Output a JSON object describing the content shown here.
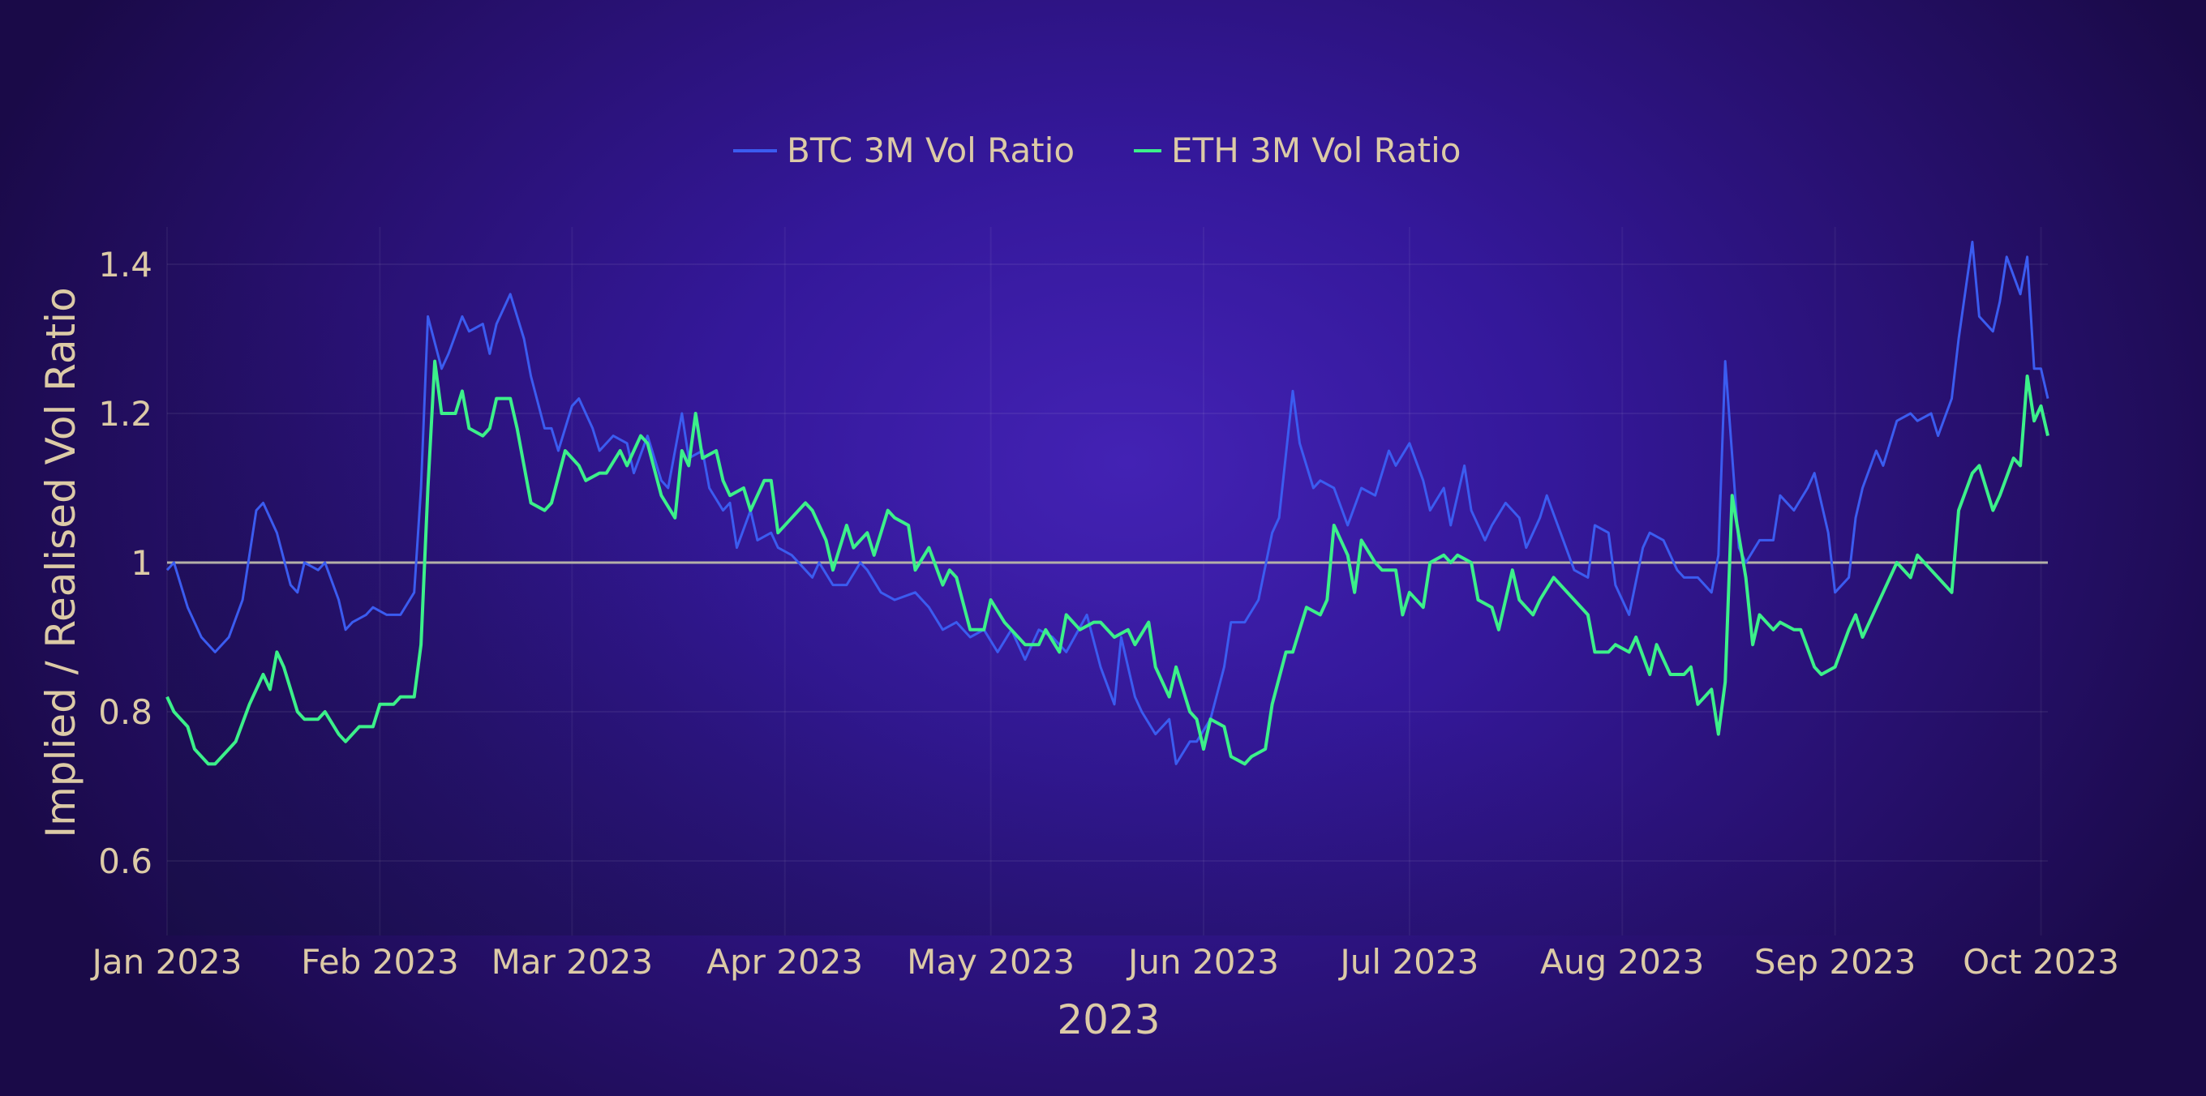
{
  "chart_data": {
    "type": "line",
    "title": "",
    "xlabel": "2023",
    "ylabel": "Implied / Realised Vol Ratio",
    "x_unit": "days since 2023-01-01",
    "xlim": [
      0,
      274
    ],
    "ylim": [
      0.5,
      1.45
    ],
    "x_ticks": [
      {
        "day": 0,
        "label": "Jan 2023"
      },
      {
        "day": 31,
        "label": "Feb 2023"
      },
      {
        "day": 59,
        "label": "Mar 2023"
      },
      {
        "day": 90,
        "label": "Apr 2023"
      },
      {
        "day": 120,
        "label": "May 2023"
      },
      {
        "day": 151,
        "label": "Jun 2023"
      },
      {
        "day": 181,
        "label": "Jul 2023"
      },
      {
        "day": 212,
        "label": "Aug 2023"
      },
      {
        "day": 243,
        "label": "Sep 2023"
      },
      {
        "day": 273,
        "label": "Oct 2023"
      }
    ],
    "y_ticks": [
      {
        "value": 0.6,
        "label": "0.6"
      },
      {
        "value": 0.8,
        "label": "0.8"
      },
      {
        "value": 1.0,
        "label": "1"
      },
      {
        "value": 1.2,
        "label": "1.2"
      },
      {
        "value": 1.4,
        "label": "1.4"
      }
    ],
    "reference_line": {
      "value": 1.0,
      "color": "#b4b0a8"
    },
    "grid": true,
    "legend_position": "top-center",
    "series": [
      {
        "name": "BTC 3M Vol Ratio",
        "color": "#3b5cf0",
        "x": [
          0,
          1,
          3,
          5,
          7,
          9,
          11,
          13,
          14,
          16,
          18,
          19,
          20,
          22,
          23,
          25,
          26,
          27,
          29,
          30,
          32,
          34,
          36,
          37,
          38,
          40,
          41,
          43,
          44,
          46,
          47,
          48,
          50,
          52,
          53,
          55,
          56,
          57,
          59,
          60,
          62,
          63,
          65,
          67,
          68,
          70,
          72,
          73,
          75,
          76,
          78,
          79,
          81,
          82,
          83,
          85,
          86,
          88,
          89,
          91,
          94,
          95,
          97,
          99,
          101,
          102,
          104,
          106,
          109,
          111,
          113,
          115,
          117,
          119,
          121,
          123,
          125,
          127,
          129,
          131,
          134,
          136,
          138,
          139,
          141,
          142,
          144,
          146,
          147,
          149,
          150,
          152,
          154,
          155,
          157,
          159,
          161,
          162,
          164,
          165,
          167,
          168,
          170,
          172,
          174,
          176,
          178,
          179,
          181,
          183,
          184,
          186,
          187,
          189,
          190,
          192,
          193,
          195,
          197,
          198,
          200,
          201,
          203,
          205,
          207,
          208,
          210,
          211,
          213,
          215,
          216,
          218,
          220,
          221,
          223,
          225,
          226,
          227,
          229,
          230,
          232,
          234,
          235,
          237,
          239,
          240,
          242,
          243,
          245,
          246,
          247,
          249,
          250,
          252,
          254,
          255,
          257,
          258,
          260,
          261,
          263,
          264,
          266,
          267,
          268,
          270,
          271,
          272,
          273,
          274
        ],
        "y": [
          0.99,
          1.0,
          0.94,
          0.9,
          0.88,
          0.9,
          0.95,
          1.07,
          1.08,
          1.04,
          0.97,
          0.96,
          1.0,
          0.99,
          1.0,
          0.95,
          0.91,
          0.92,
          0.93,
          0.94,
          0.93,
          0.93,
          0.96,
          1.1,
          1.33,
          1.26,
          1.28,
          1.33,
          1.31,
          1.32,
          1.28,
          1.32,
          1.36,
          1.3,
          1.25,
          1.18,
          1.18,
          1.15,
          1.21,
          1.22,
          1.18,
          1.15,
          1.17,
          1.16,
          1.12,
          1.17,
          1.11,
          1.1,
          1.2,
          1.14,
          1.15,
          1.1,
          1.07,
          1.08,
          1.02,
          1.07,
          1.03,
          1.04,
          1.02,
          1.01,
          0.98,
          1.0,
          0.97,
          0.97,
          1.0,
          0.99,
          0.96,
          0.95,
          0.96,
          0.94,
          0.91,
          0.92,
          0.9,
          0.91,
          0.88,
          0.91,
          0.87,
          0.91,
          0.9,
          0.88,
          0.93,
          0.86,
          0.81,
          0.9,
          0.82,
          0.8,
          0.77,
          0.79,
          0.73,
          0.76,
          0.76,
          0.79,
          0.86,
          0.92,
          0.92,
          0.95,
          1.04,
          1.06,
          1.23,
          1.16,
          1.1,
          1.11,
          1.1,
          1.05,
          1.1,
          1.09,
          1.15,
          1.13,
          1.16,
          1.11,
          1.07,
          1.1,
          1.05,
          1.13,
          1.07,
          1.03,
          1.05,
          1.08,
          1.06,
          1.02,
          1.06,
          1.09,
          1.04,
          0.99,
          0.98,
          1.05,
          1.04,
          0.97,
          0.93,
          1.02,
          1.04,
          1.03,
          0.99,
          0.98,
          0.98,
          0.96,
          1.01,
          1.27,
          1.02,
          1.0,
          1.03,
          1.03,
          1.09,
          1.07,
          1.1,
          1.12,
          1.04,
          0.96,
          0.98,
          1.06,
          1.1,
          1.15,
          1.13,
          1.19,
          1.2,
          1.19,
          1.2,
          1.17,
          1.22,
          1.3,
          1.43,
          1.33,
          1.31,
          1.35,
          1.41,
          1.36,
          1.41,
          1.26,
          1.26,
          1.22
        ]
      },
      {
        "name": "ETH 3M Vol Ratio",
        "color": "#3cf08a",
        "x": [
          0,
          1,
          3,
          4,
          6,
          7,
          9,
          10,
          12,
          14,
          15,
          16,
          17,
          19,
          20,
          22,
          23,
          25,
          26,
          28,
          30,
          31,
          33,
          34,
          36,
          37,
          38,
          39,
          40,
          42,
          43,
          44,
          46,
          47,
          48,
          50,
          51,
          53,
          55,
          56,
          58,
          60,
          61,
          63,
          64,
          66,
          67,
          69,
          70,
          72,
          74,
          75,
          76,
          77,
          78,
          80,
          81,
          82,
          84,
          85,
          87,
          88,
          89,
          91,
          93,
          94,
          96,
          97,
          99,
          100,
          102,
          103,
          105,
          106,
          108,
          109,
          111,
          113,
          114,
          115,
          117,
          119,
          120,
          122,
          123,
          125,
          127,
          128,
          130,
          131,
          133,
          135,
          136,
          138,
          140,
          141,
          143,
          144,
          146,
          147,
          149,
          150,
          151,
          152,
          154,
          155,
          157,
          158,
          160,
          161,
          163,
          164,
          166,
          168,
          169,
          170,
          172,
          173,
          174,
          176,
          177,
          179,
          180,
          181,
          183,
          184,
          186,
          187,
          188,
          190,
          191,
          193,
          194,
          196,
          197,
          199,
          200,
          202,
          203,
          205,
          207,
          208,
          210,
          211,
          213,
          214,
          216,
          217,
          219,
          221,
          222,
          223,
          225,
          226,
          227,
          228,
          230,
          231,
          232,
          234,
          235,
          237,
          238,
          240,
          241,
          243,
          245,
          246,
          247,
          249,
          250,
          252,
          254,
          255,
          257,
          258,
          260,
          261,
          263,
          264,
          266,
          267,
          269,
          270,
          271,
          272,
          273,
          274
        ],
        "y": [
          0.82,
          0.8,
          0.78,
          0.75,
          0.73,
          0.73,
          0.75,
          0.76,
          0.81,
          0.85,
          0.83,
          0.88,
          0.86,
          0.8,
          0.79,
          0.79,
          0.8,
          0.77,
          0.76,
          0.78,
          0.78,
          0.81,
          0.81,
          0.82,
          0.82,
          0.89,
          1.1,
          1.27,
          1.2,
          1.2,
          1.23,
          1.18,
          1.17,
          1.18,
          1.22,
          1.22,
          1.18,
          1.08,
          1.07,
          1.08,
          1.15,
          1.13,
          1.11,
          1.12,
          1.12,
          1.15,
          1.13,
          1.17,
          1.16,
          1.09,
          1.06,
          1.15,
          1.13,
          1.2,
          1.14,
          1.15,
          1.11,
          1.09,
          1.1,
          1.07,
          1.11,
          1.11,
          1.04,
          1.06,
          1.08,
          1.07,
          1.03,
          0.99,
          1.05,
          1.02,
          1.04,
          1.01,
          1.07,
          1.06,
          1.05,
          0.99,
          1.02,
          0.97,
          0.99,
          0.98,
          0.91,
          0.91,
          0.95,
          0.92,
          0.91,
          0.89,
          0.89,
          0.91,
          0.88,
          0.93,
          0.91,
          0.92,
          0.92,
          0.9,
          0.91,
          0.89,
          0.92,
          0.86,
          0.82,
          0.86,
          0.8,
          0.79,
          0.75,
          0.79,
          0.78,
          0.74,
          0.73,
          0.74,
          0.75,
          0.81,
          0.88,
          0.88,
          0.94,
          0.93,
          0.95,
          1.05,
          1.01,
          0.96,
          1.03,
          1.0,
          0.99,
          0.99,
          0.93,
          0.96,
          0.94,
          1.0,
          1.01,
          1.0,
          1.01,
          1.0,
          0.95,
          0.94,
          0.91,
          0.99,
          0.95,
          0.93,
          0.95,
          0.98,
          0.97,
          0.95,
          0.93,
          0.88,
          0.88,
          0.89,
          0.88,
          0.9,
          0.85,
          0.89,
          0.85,
          0.85,
          0.86,
          0.81,
          0.83,
          0.77,
          0.84,
          1.09,
          0.98,
          0.89,
          0.93,
          0.91,
          0.92,
          0.91,
          0.91,
          0.86,
          0.85,
          0.86,
          0.91,
          0.93,
          0.9,
          0.94,
          0.96,
          1.0,
          0.98,
          1.01,
          0.99,
          0.98,
          0.96,
          1.07,
          1.12,
          1.13,
          1.07,
          1.09,
          1.14,
          1.13,
          1.25,
          1.19,
          1.21,
          1.17
        ]
      }
    ]
  }
}
